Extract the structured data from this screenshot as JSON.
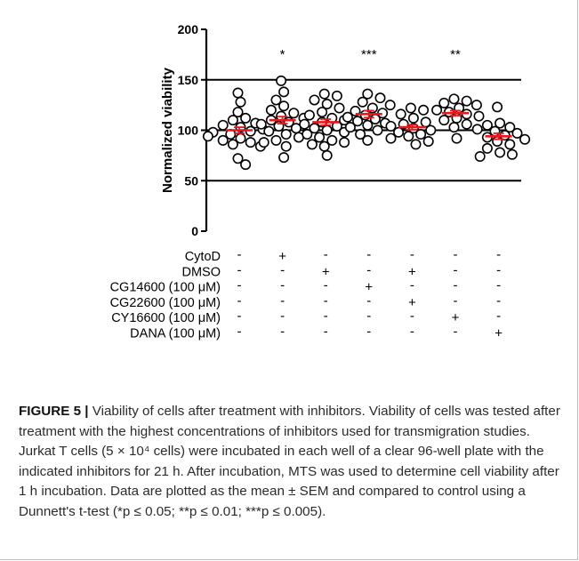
{
  "chart_data": {
    "type": "scatter",
    "ylabel": "Normalized viability",
    "ylim": [
      0,
      200
    ],
    "yticks": [
      "0",
      "50",
      "100",
      "150",
      "200"
    ],
    "reference_lines": [
      50,
      100,
      150
    ],
    "significance": [
      "",
      "*",
      "",
      "***",
      "",
      "**",
      ""
    ],
    "groups": [
      {
        "mean": 100,
        "sem": 3.0,
        "points": [
          137,
          128,
          118,
          112,
          110,
          107,
          105,
          103,
          101,
          99,
          98,
          96,
          94,
          92,
          90,
          88,
          86,
          84,
          72,
          66
        ]
      },
      {
        "mean": 110,
        "sem": 3.5,
        "points": [
          149,
          138,
          130,
          124,
          120,
          117,
          114,
          112,
          110,
          108,
          106,
          104,
          102,
          99,
          96,
          93,
          90,
          88,
          84,
          73
        ]
      },
      {
        "mean": 108,
        "sem": 3.0,
        "points": [
          136,
          134,
          130,
          126,
          122,
          118,
          115,
          112,
          110,
          108,
          106,
          104,
          102,
          100,
          98,
          96,
          93,
          90,
          88,
          86,
          84,
          75
        ]
      },
      {
        "mean": 116,
        "sem": 3.5,
        "points": [
          136,
          132,
          128,
          125,
          122,
          119,
          117,
          115,
          113,
          111,
          109,
          107,
          105,
          103,
          100,
          96,
          90
        ]
      },
      {
        "mean": 103,
        "sem": 2.5,
        "points": [
          122,
          120,
          116,
          112,
          108,
          106,
          104,
          102,
          100,
          98,
          96,
          94,
          92,
          89,
          86
        ]
      },
      {
        "mean": 117,
        "sem": 2.5,
        "points": [
          131,
          129,
          127,
          125,
          122,
          120,
          118,
          116,
          114,
          112,
          110,
          106,
          103,
          92
        ]
      },
      {
        "mean": 94,
        "sem": 3.0,
        "points": [
          123,
          107,
          105,
          103,
          101,
          99,
          97,
          95,
          93,
          91,
          89,
          86,
          82,
          78,
          76,
          74
        ]
      }
    ],
    "conditions": [
      {
        "label": "CytoD",
        "signs": [
          "-",
          "+",
          "-",
          "-",
          "-",
          "-",
          "-"
        ]
      },
      {
        "label": "DMSO",
        "signs": [
          "-",
          "-",
          "+",
          "-",
          "+",
          "-",
          "-"
        ]
      },
      {
        "label": "CG14600 (100 μM)",
        "signs": [
          "-",
          "-",
          "-",
          "+",
          "-",
          "-",
          "-"
        ]
      },
      {
        "label": "CG22600 (100 μM)",
        "signs": [
          "-",
          "-",
          "-",
          "-",
          "+",
          "-",
          "-"
        ]
      },
      {
        "label": "CY16600 (100 μM)",
        "signs": [
          "-",
          "-",
          "-",
          "-",
          "-",
          "+",
          "-"
        ]
      },
      {
        "label": "DANA (100 μM)",
        "signs": [
          "-",
          "-",
          "-",
          "-",
          "-",
          "-",
          "+"
        ]
      }
    ],
    "colors": {
      "points": "#000000",
      "mean_line": "#e8191e",
      "axis": "#000000"
    }
  },
  "caption": {
    "lead": "FIGURE 5 |",
    "text": " Viability of cells after treatment with inhibitors. Viability of cells was tested after treatment with the highest concentrations of inhibitors used for transmigration studies. Jurkat T cells (5 × 10⁴ cells) were incubated in each well of a clear 96-well plate with the indicated inhibitors for 21 h. After incubation, MTS was used to determine cell viability after 1 h incubation. Data are plotted as the mean ± SEM and compared to control using a Dunnett's t-test (*p ≤ 0.05; **p ≤ 0.01; ***p ≤ 0.005)."
  }
}
